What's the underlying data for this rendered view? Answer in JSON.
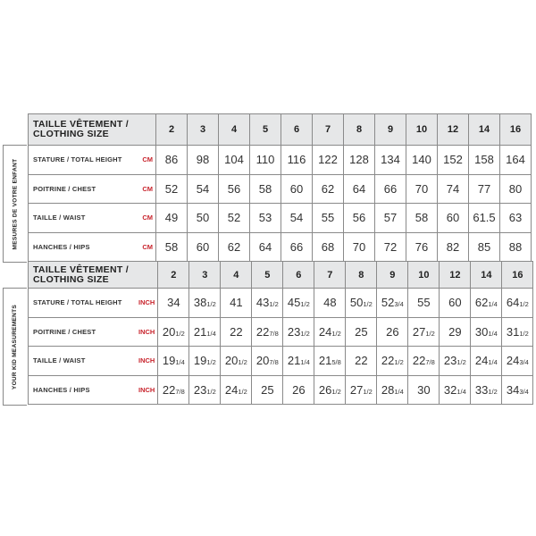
{
  "header_label": "TAILLE VÊTEMENT / CLOTHING SIZE",
  "sizes": [
    "2",
    "3",
    "4",
    "5",
    "6",
    "7",
    "8",
    "9",
    "10",
    "12",
    "14",
    "16"
  ],
  "colors": {
    "unit": "#c8232c",
    "header_bg": "#e6e7e8"
  },
  "cm": {
    "side_label": "MESURES DE VOTRE ENFANT",
    "rows": [
      {
        "label": "STATURE / TOTAL HEIGHT",
        "unit": "CM",
        "values": [
          "86",
          "98",
          "104",
          "110",
          "116",
          "122",
          "128",
          "134",
          "140",
          "152",
          "158",
          "164"
        ]
      },
      {
        "label": "POITRINE / CHEST",
        "unit": "CM",
        "values": [
          "52",
          "54",
          "56",
          "58",
          "60",
          "62",
          "64",
          "66",
          "70",
          "74",
          "77",
          "80"
        ]
      },
      {
        "label": "TAILLE / WAIST",
        "unit": "CM",
        "values": [
          "49",
          "50",
          "52",
          "53",
          "54",
          "55",
          "56",
          "57",
          "58",
          "60",
          "61.5",
          "63"
        ]
      },
      {
        "label": "HANCHES / HIPS",
        "unit": "CM",
        "values": [
          "58",
          "60",
          "62",
          "64",
          "66",
          "68",
          "70",
          "72",
          "76",
          "82",
          "85",
          "88"
        ]
      }
    ]
  },
  "inch": {
    "side_label": "YOUR KID MEASUREMENTS",
    "rows": [
      {
        "label": "STATURE / TOTAL HEIGHT",
        "unit": "INCH",
        "values": [
          "34",
          "38 1/2",
          "41",
          "43 1/2",
          "45 1/2",
          "48",
          "50 1/2",
          "52 3/4",
          "55",
          "60",
          "62 1/4",
          "64 1/2"
        ]
      },
      {
        "label": "POITRINE / CHEST",
        "unit": "INCH",
        "values": [
          "20 1/2",
          "21 1/4",
          "22",
          "22 7/8",
          "23 1/2",
          "24 1/2",
          "25",
          "26",
          "27 1/2",
          "29",
          "30 1/4",
          "31 1/2"
        ]
      },
      {
        "label": "TAILLE / WAIST",
        "unit": "INCH",
        "values": [
          "19 1/4",
          "19 1/2",
          "20 1/2",
          "20 7/8",
          "21 1/4",
          "21 5/8",
          "22",
          "22 1/2",
          "22 7/8",
          "23 1/2",
          "24 1/4",
          "24 3/4"
        ]
      },
      {
        "label": "HANCHES / HIPS",
        "unit": "INCH",
        "values": [
          "22 7/8",
          "23 1/2",
          "24 1/2",
          "25",
          "26",
          "26 1/2",
          "27 1/2",
          "28 1/4",
          "30",
          "32 1/4",
          "33 1/2",
          "34 3/4"
        ]
      }
    ]
  }
}
